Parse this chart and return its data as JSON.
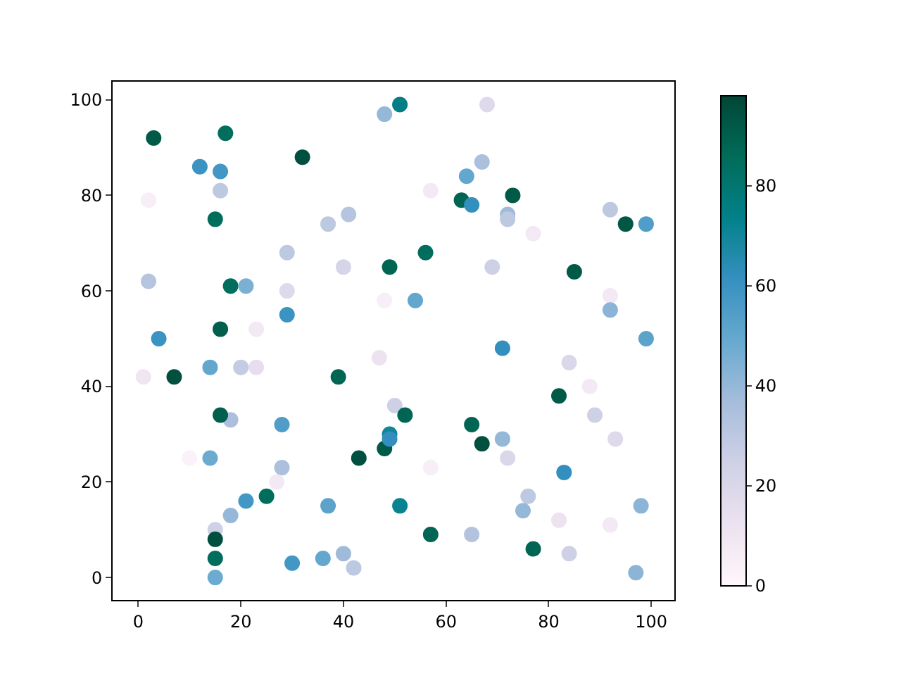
{
  "chart_data": {
    "type": "scatter",
    "marker": "circle",
    "grid": false,
    "x": [
      3,
      17,
      32,
      12,
      16,
      16,
      2,
      15,
      18,
      21,
      2,
      4,
      16,
      7,
      1,
      14,
      18,
      16,
      20,
      23,
      23,
      29,
      29,
      29,
      28,
      28,
      27,
      14,
      10,
      15,
      15,
      15,
      15,
      18,
      21,
      25,
      30,
      36,
      37,
      40,
      42,
      43,
      39,
      37,
      41,
      40,
      48,
      51,
      49,
      48,
      47,
      48,
      49,
      49,
      50,
      52,
      51,
      54,
      56,
      57,
      57,
      57,
      63,
      64,
      65,
      67,
      68,
      69,
      72,
      72,
      73,
      77,
      71,
      65,
      67,
      71,
      72,
      65,
      76,
      75,
      77,
      82,
      84,
      83,
      82,
      84,
      88,
      89,
      93,
      92,
      92,
      92,
      92,
      95,
      99,
      85,
      99,
      98,
      97
    ],
    "values": [
      92,
      93,
      88,
      86,
      85,
      81,
      79,
      75,
      61,
      61,
      62,
      50,
      52,
      42,
      42,
      44,
      33,
      34,
      44,
      44,
      52,
      60,
      68,
      55,
      32,
      23,
      20,
      25,
      25,
      10,
      8,
      4,
      0,
      13,
      16,
      17,
      3,
      4,
      15,
      5,
      2,
      25,
      42,
      74,
      76,
      65,
      97,
      99,
      65,
      58,
      46,
      27,
      30,
      29,
      36,
      34,
      15,
      58,
      68,
      81,
      23,
      9,
      79,
      84,
      78,
      87,
      99,
      65,
      76,
      75,
      80,
      72,
      48,
      32,
      28,
      29,
      25,
      9,
      17,
      14,
      6,
      12,
      5,
      22,
      38,
      45,
      40,
      34,
      29,
      11,
      59,
      56,
      77,
      74,
      74,
      64,
      50,
      15,
      1
    ],
    "cvalues": [
      92,
      85,
      95,
      60,
      58,
      30,
      5,
      85,
      85,
      45,
      32,
      60,
      90,
      95,
      10,
      50,
      35,
      90,
      28,
      15,
      8,
      18,
      30,
      60,
      55,
      35,
      8,
      48,
      3,
      25,
      95,
      85,
      48,
      40,
      58,
      85,
      58,
      50,
      52,
      38,
      30,
      95,
      88,
      30,
      32,
      22,
      40,
      75,
      88,
      5,
      12,
      92,
      70,
      62,
      25,
      88,
      72,
      50,
      85,
      8,
      5,
      88,
      88,
      50,
      62,
      35,
      18,
      25,
      38,
      30,
      92,
      8,
      62,
      88,
      95,
      40,
      20,
      33,
      30,
      40,
      88,
      12,
      25,
      62,
      92,
      20,
      8,
      25,
      18,
      8,
      8,
      42,
      30,
      93,
      55,
      92,
      52,
      42,
      42
    ],
    "clim": [
      0,
      98
    ],
    "cticks": [
      0,
      20,
      40,
      60,
      80
    ],
    "xlim": [
      -5,
      104.5
    ],
    "xticks": [
      0,
      20,
      40,
      60,
      80,
      100
    ],
    "ylim": [
      -4.7,
      103.8
    ],
    "yticks": [
      0,
      20,
      40,
      60,
      80,
      100
    ]
  }
}
